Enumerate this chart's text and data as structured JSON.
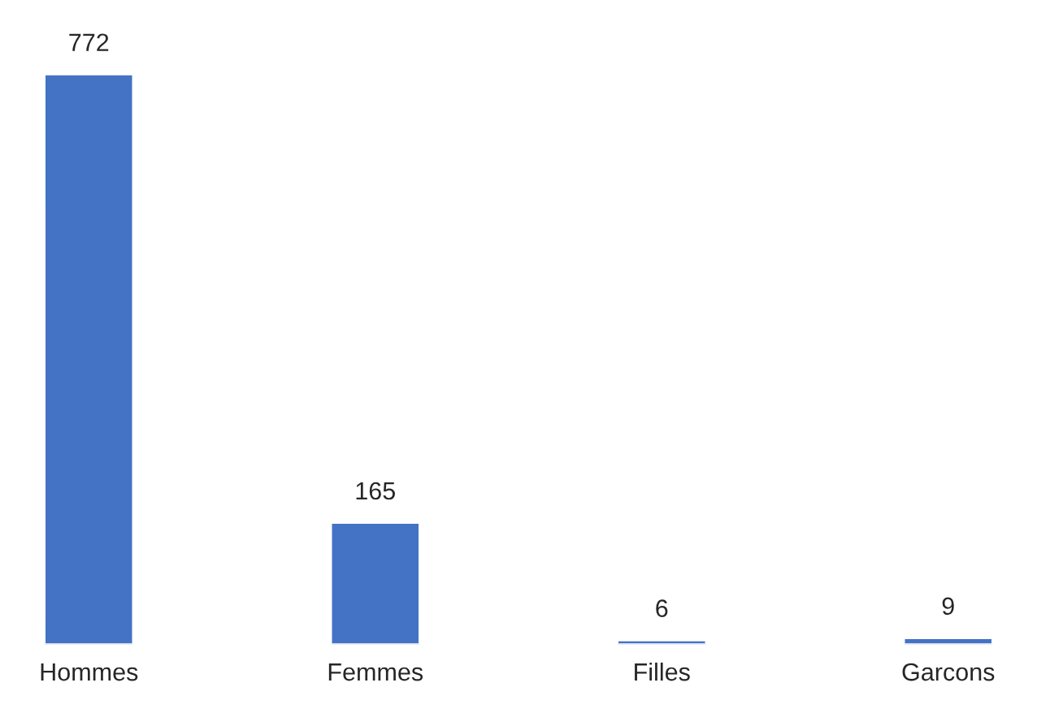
{
  "chart_data": {
    "type": "bar",
    "categories": [
      "Hommes",
      "Femmes",
      "Filles",
      "Garcons"
    ],
    "values": [
      772,
      165,
      6,
      9
    ],
    "color": "#4472c4",
    "data_labels": true,
    "grid": false,
    "legend": false
  }
}
